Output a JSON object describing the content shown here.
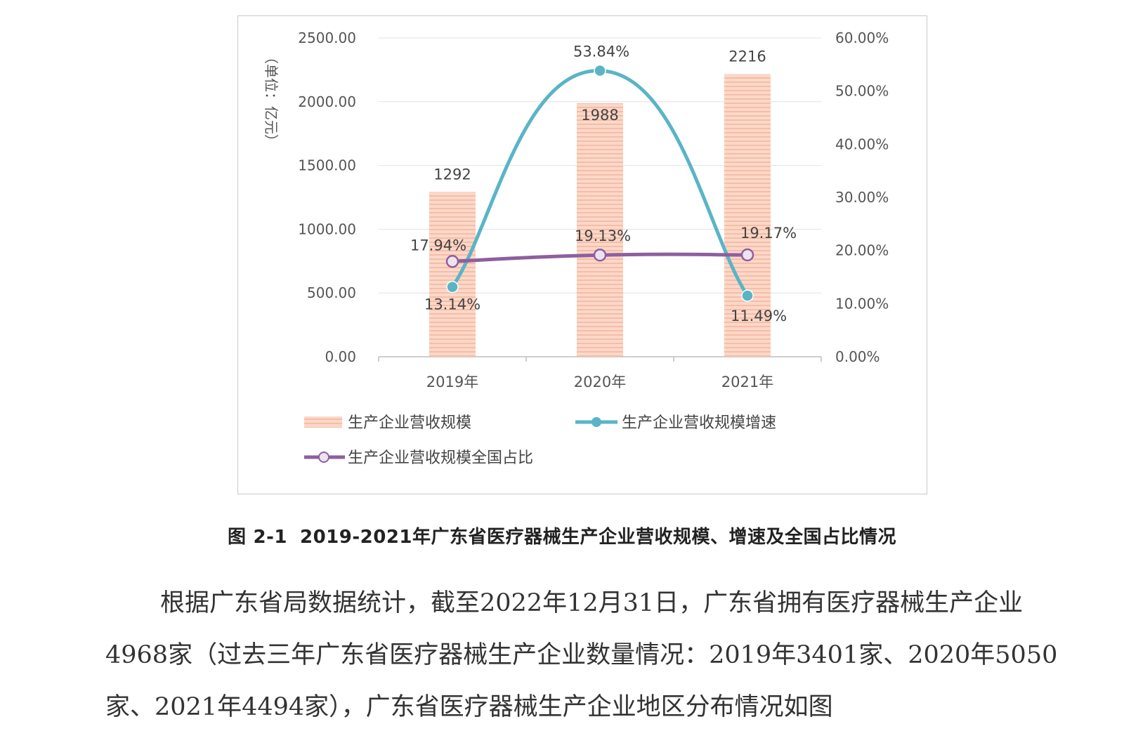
{
  "chart_data": {
    "type": "bar",
    "categories": [
      "2019年",
      "2020年",
      "2021年"
    ],
    "series": [
      {
        "name": "生产企业营收规模",
        "type": "bar",
        "axis": "left",
        "values": [
          1292,
          1988,
          2216
        ],
        "labels": [
          "1292",
          "1988",
          "2216"
        ],
        "color": "#f9c9b5"
      },
      {
        "name": "生产企业营收规模增速",
        "type": "line",
        "axis": "right",
        "values": [
          13.14,
          53.84,
          11.49
        ],
        "labels": [
          "13.14%",
          "53.84%",
          "11.49%"
        ],
        "color": "#5ab4c6"
      },
      {
        "name": "生产企业营收规模全国占比",
        "type": "line",
        "axis": "right",
        "values": [
          17.94,
          19.13,
          19.17
        ],
        "labels": [
          "17.94%",
          "19.13%",
          "19.17%"
        ],
        "color": "#8e5f9f"
      }
    ],
    "ylabel": "（单位：亿元）",
    "ylim_left": [
      0,
      2500
    ],
    "ylim_right": [
      0,
      60
    ],
    "yticks_left": [
      "0.00",
      "500.00",
      "1000.00",
      "1500.00",
      "2000.00",
      "2500.00"
    ],
    "yticks_right": [
      "0.00%",
      "10.00%",
      "20.00%",
      "30.00%",
      "40.00%",
      "50.00%",
      "60.00%"
    ],
    "grid": true,
    "legend_position": "bottom"
  },
  "caption": {
    "label": "图",
    "number": "2-1",
    "text": "2019-2021年广东省医疗器械生产企业营收规模、增速及全国占比情况"
  },
  "body_paragraph": "根据广东省局数据统计，截至2022年12月31日，广东省拥有医疗器械生产企业4968家（过去三年广东省医疗器械生产企业数量情况：2019年3401家、2020年5050家、2021年4494家），广东省医疗器械生产企业地区分布情况如图"
}
